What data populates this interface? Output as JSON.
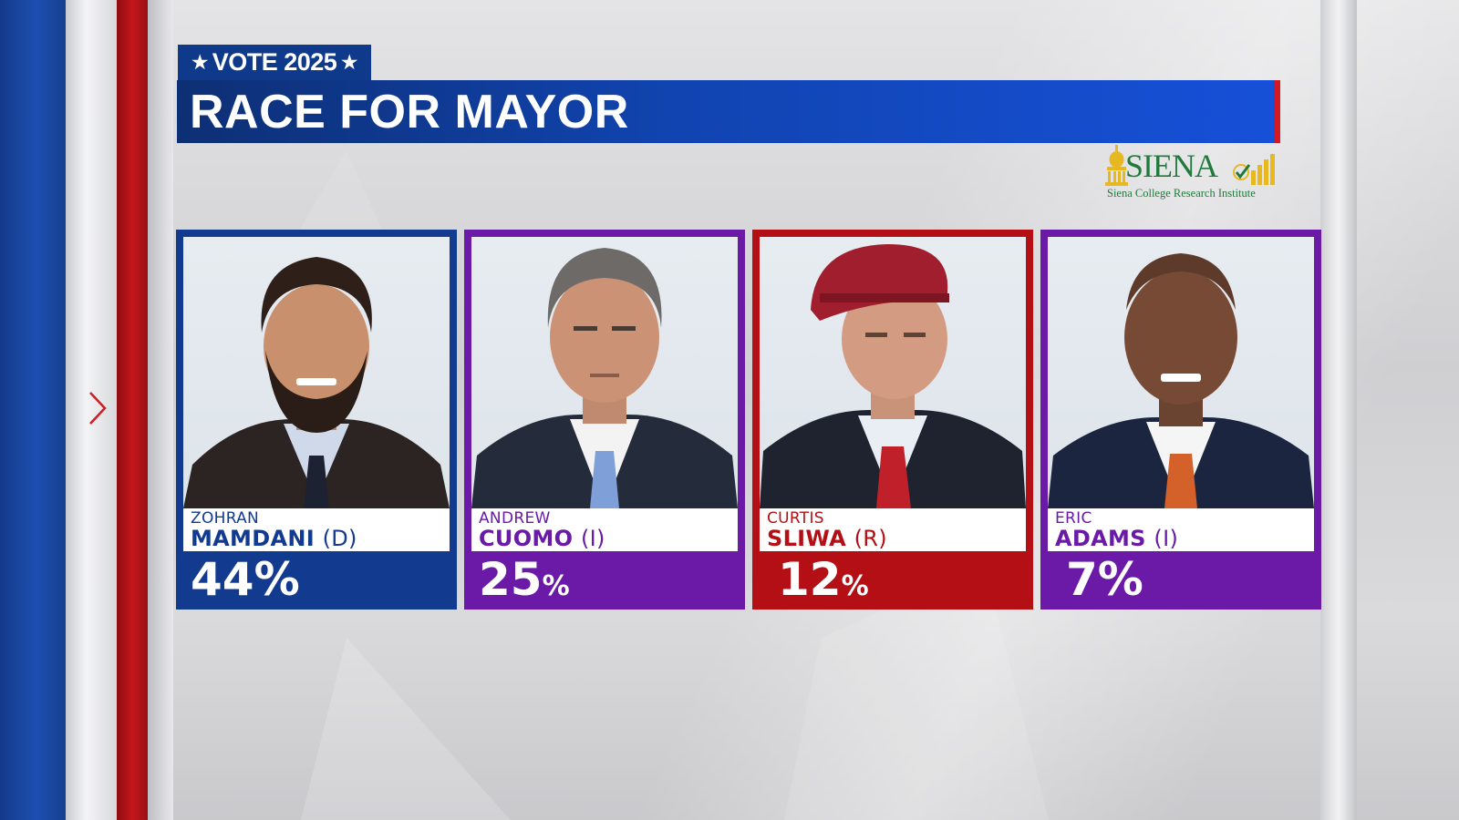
{
  "header": {
    "tag": "VOTE 2025",
    "tag_star": "★",
    "title": "RACE FOR MAYOR"
  },
  "logo": {
    "wordmark": "SIENA",
    "subtitle": "Siena College Research Institute"
  },
  "colors": {
    "democrat": "#123a8e",
    "independent": "#6a1aa6",
    "republican": "#b30f14",
    "title_bar": "#1144b0",
    "logo_green": "#1f7a3c",
    "logo_gold": "#e8b820"
  },
  "candidates": [
    {
      "first": "ZOHRAN",
      "last": "MAMDANI",
      "party": "(D)",
      "pct_number": "44",
      "pct_sign": "%",
      "pct_value": 44
    },
    {
      "first": "ANDREW",
      "last": "CUOMO",
      "party": "(I)",
      "pct_number": "25",
      "pct_sign": "%",
      "pct_value": 25
    },
    {
      "first": "CURTIS",
      "last": "SLIWA",
      "party": "(R)",
      "pct_number": "12",
      "pct_sign": "%",
      "pct_value": 12
    },
    {
      "first": "ERIC",
      "last": "ADAMS",
      "party": "(I)",
      "pct_number": "7",
      "pct_sign": "%",
      "pct_value": 7
    }
  ]
}
